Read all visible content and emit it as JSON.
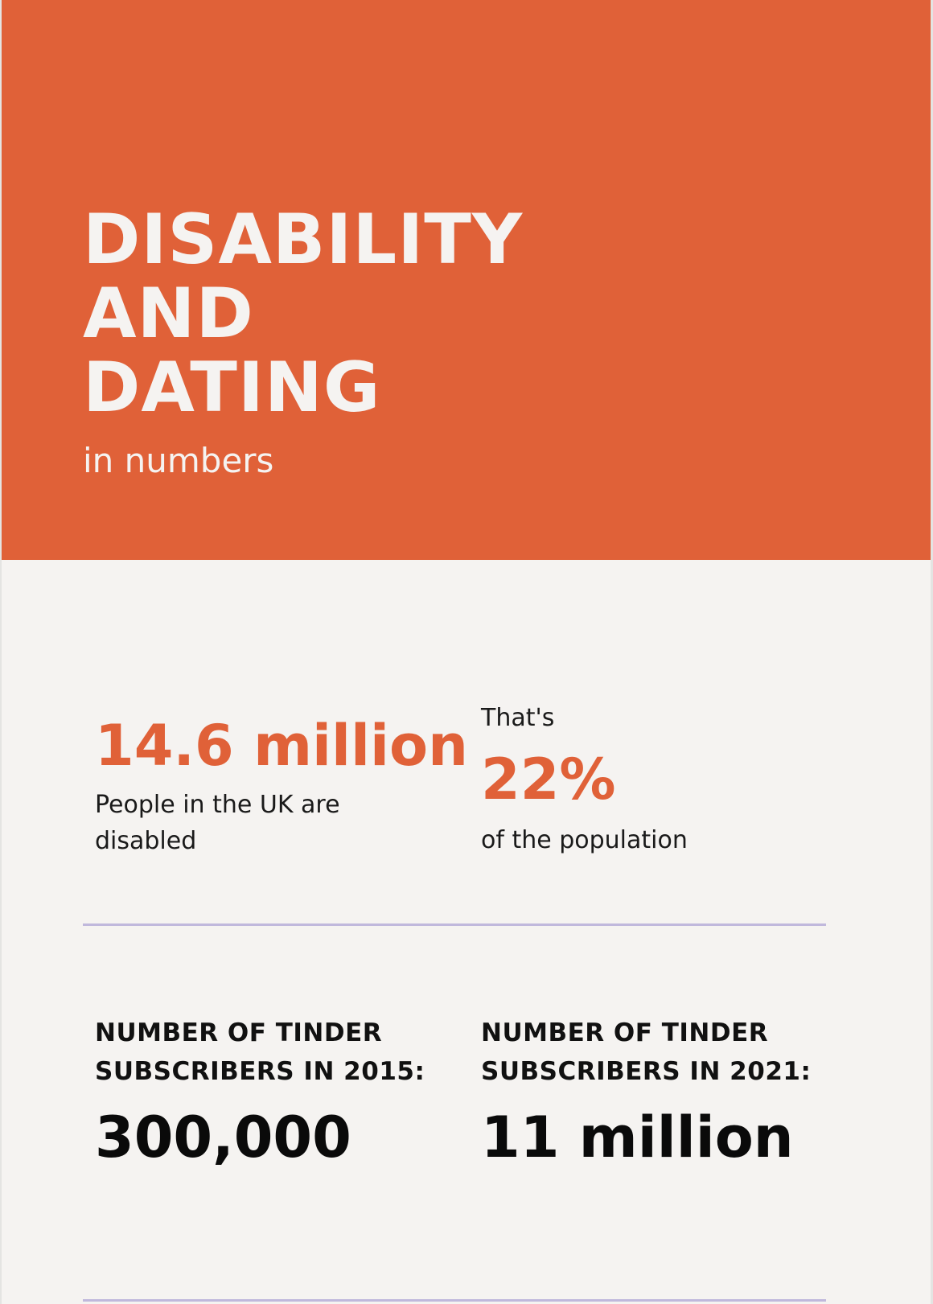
{
  "header": {
    "title_lines": [
      "DISABILITY",
      "AND",
      "DATING"
    ],
    "subtitle": "in numbers"
  },
  "stats_row1": {
    "left": {
      "value": "14.6 million",
      "description": "People in the UK are disabled"
    },
    "right": {
      "prefix": "That's",
      "value": "22%",
      "description": "of the population"
    }
  },
  "stats_row2": {
    "left": {
      "label_lines": [
        "NUMBER OF TINDER",
        "SUBSCRIBERS IN 2015:"
      ],
      "value": "300,000"
    },
    "right": {
      "label_lines": [
        "NUMBER OF TINDER",
        "SUBSCRIBERS IN 2021:"
      ],
      "value": "11 million"
    }
  },
  "colors": {
    "accent": "#e06138",
    "background": "#f5f3f1",
    "divider": "#c0b8dc",
    "text": "#0a0a0a"
  }
}
